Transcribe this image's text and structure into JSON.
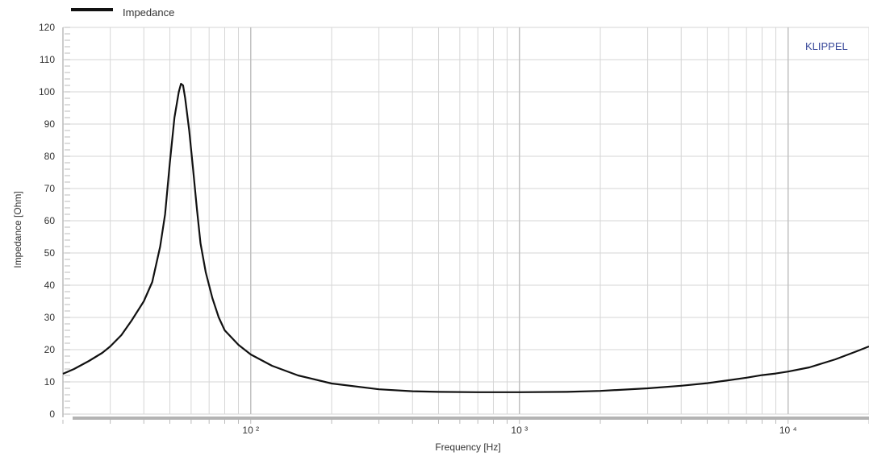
{
  "chart_data": {
    "type": "line",
    "title": "",
    "xlabel": "Frequency  [Hz]",
    "ylabel": "Impedance  [Ohm]",
    "xscale": "log",
    "xlim": [
      20,
      20000
    ],
    "ylim": [
      0,
      120
    ],
    "yticks": [
      0,
      10,
      20,
      30,
      40,
      50,
      60,
      70,
      80,
      90,
      100,
      110,
      120
    ],
    "xticks": [
      {
        "value": 100,
        "label": "10 ²"
      },
      {
        "value": 1000,
        "label": "10 ³"
      },
      {
        "value": 10000,
        "label": "10 ⁴"
      }
    ],
    "grid": true,
    "legend": {
      "position": "top-left",
      "entries": [
        "Impedance"
      ]
    },
    "watermark": "KLIPPEL",
    "colors": {
      "line": "#111111",
      "grid": "#d6d6d6",
      "axis": "#aaaaaa",
      "watermark": "#3a4a9a"
    },
    "series": [
      {
        "name": "Impedance",
        "points": [
          [
            20,
            12.5
          ],
          [
            22,
            14
          ],
          [
            25,
            16.5
          ],
          [
            28,
            19
          ],
          [
            30,
            21
          ],
          [
            33,
            24.5
          ],
          [
            36,
            29
          ],
          [
            40,
            35
          ],
          [
            43,
            41
          ],
          [
            46,
            52
          ],
          [
            48,
            62
          ],
          [
            50,
            78
          ],
          [
            52,
            92
          ],
          [
            54,
            100
          ],
          [
            55,
            102.5
          ],
          [
            56,
            102
          ],
          [
            57,
            98
          ],
          [
            59,
            88
          ],
          [
            61,
            76
          ],
          [
            63,
            64
          ],
          [
            65,
            53
          ],
          [
            68,
            44
          ],
          [
            72,
            36
          ],
          [
            76,
            30
          ],
          [
            80,
            26
          ],
          [
            90,
            21.5
          ],
          [
            100,
            18.5
          ],
          [
            120,
            15
          ],
          [
            150,
            12
          ],
          [
            200,
            9.5
          ],
          [
            300,
            7.7
          ],
          [
            400,
            7.1
          ],
          [
            500,
            6.9
          ],
          [
            700,
            6.8
          ],
          [
            1000,
            6.8
          ],
          [
            1500,
            6.9
          ],
          [
            2000,
            7.2
          ],
          [
            3000,
            8.0
          ],
          [
            4000,
            8.8
          ],
          [
            5000,
            9.6
          ],
          [
            6000,
            10.5
          ],
          [
            7000,
            11.3
          ],
          [
            8000,
            12.1
          ],
          [
            9000,
            12.6
          ],
          [
            10000,
            13.2
          ],
          [
            12000,
            14.5
          ],
          [
            15000,
            17
          ],
          [
            18000,
            19.5
          ],
          [
            20000,
            21
          ]
        ]
      }
    ]
  }
}
